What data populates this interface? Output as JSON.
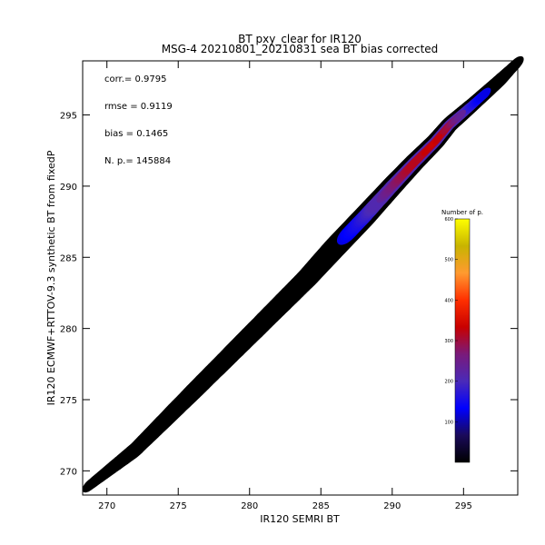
{
  "chart_data": {
    "type": "heatmap",
    "title": "BT pxy_clear for IR120",
    "subtitle": "MSG-4 20210801_20210831 sea BT bias corrected",
    "xlabel": "IR120 SEMRI BT",
    "ylabel": "IR120 ECMWF+RTTOV-9.3 synthetic BT from fixedP",
    "xlim": [
      268.3,
      298.8
    ],
    "ylim": [
      268.3,
      298.8
    ],
    "xticks": [
      270,
      275,
      280,
      285,
      290,
      295
    ],
    "yticks": [
      270,
      275,
      280,
      285,
      290,
      295
    ],
    "grid": false,
    "stats": [
      "corr.= 0.9795",
      "rmse = 0.9119",
      "bias = 0.1465",
      "N. p.=  145884"
    ],
    "colorbar": {
      "label": "Number of p.",
      "range": [
        0,
        600
      ],
      "ticks": [
        100,
        200,
        300,
        400,
        500,
        600
      ],
      "colors": [
        "#000000",
        "#1a0a5a",
        "#0000ff",
        "#4a2ab8",
        "#7a1a7a",
        "#c80000",
        "#ff3000",
        "#ff9a30",
        "#c8b400",
        "#ffff00"
      ]
    },
    "density_ridge": {
      "x": [
        268.8,
        272,
        276,
        280,
        284,
        286,
        288,
        290,
        291.5,
        293,
        294,
        295.5,
        297.5,
        298.7
      ],
      "y": [
        269.0,
        271.5,
        275.5,
        279.5,
        283.5,
        285.7,
        287.8,
        290.0,
        291.6,
        293.1,
        294.3,
        295.6,
        297.4,
        298.6
      ],
      "spread": [
        0.6,
        0.9,
        1.1,
        1.2,
        1.3,
        1.4,
        1.4,
        1.3,
        1.2,
        1.1,
        1.0,
        0.9,
        0.8,
        0.6
      ],
      "peak_count": [
        2,
        6,
        15,
        28,
        55,
        90,
        160,
        260,
        320,
        340,
        300,
        180,
        60,
        20
      ]
    }
  }
}
